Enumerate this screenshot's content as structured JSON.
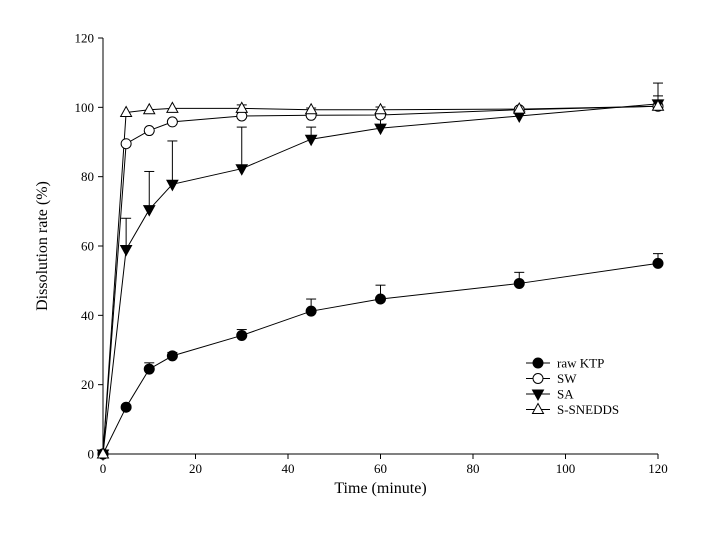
{
  "chart_data": {
    "type": "line",
    "title": "",
    "xlabel": "Time (minute)",
    "ylabel": "Dissolution rate (%)",
    "xlim": [
      0,
      120
    ],
    "ylim": [
      0,
      120
    ],
    "xticks": [
      0,
      20,
      40,
      60,
      80,
      100,
      120
    ],
    "yticks": [
      0,
      20,
      40,
      60,
      80,
      100,
      120
    ],
    "grid": false,
    "legend_position": "bottom-right",
    "x": [
      0,
      5,
      10,
      15,
      30,
      45,
      60,
      90,
      120
    ],
    "series": [
      {
        "name": "raw KTP",
        "marker": "filled-circle",
        "values": [
          0,
          13.5,
          24.5,
          28.3,
          34.2,
          41.2,
          44.7,
          49.2,
          55.0
        ],
        "errors": [
          0,
          0.6,
          1.8,
          1.0,
          1.7,
          3.5,
          4.0,
          3.2,
          2.8
        ]
      },
      {
        "name": "SW",
        "marker": "open-circle",
        "values": [
          0,
          89.5,
          93.3,
          95.8,
          97.5,
          97.7,
          97.8,
          99.3,
          100.3
        ],
        "errors": [
          0,
          0,
          0,
          0,
          0,
          0,
          0,
          0,
          0
        ]
      },
      {
        "name": "SA",
        "marker": "filled-triangle-down",
        "values": [
          0,
          59.0,
          70.5,
          77.8,
          82.3,
          90.8,
          94.0,
          97.5,
          101.0
        ],
        "errors": [
          0,
          9.0,
          11.0,
          12.5,
          12.0,
          3.5,
          3.0,
          2.0,
          6.0
        ]
      },
      {
        "name": "S-SNEDDS",
        "marker": "open-triangle-up",
        "values": [
          0,
          98.5,
          99.3,
          99.7,
          99.7,
          99.3,
          99.3,
          99.5,
          100.3
        ],
        "errors": [
          0,
          0,
          0,
          0,
          1.0,
          0.5,
          0.8,
          0.5,
          3.0
        ]
      }
    ]
  }
}
